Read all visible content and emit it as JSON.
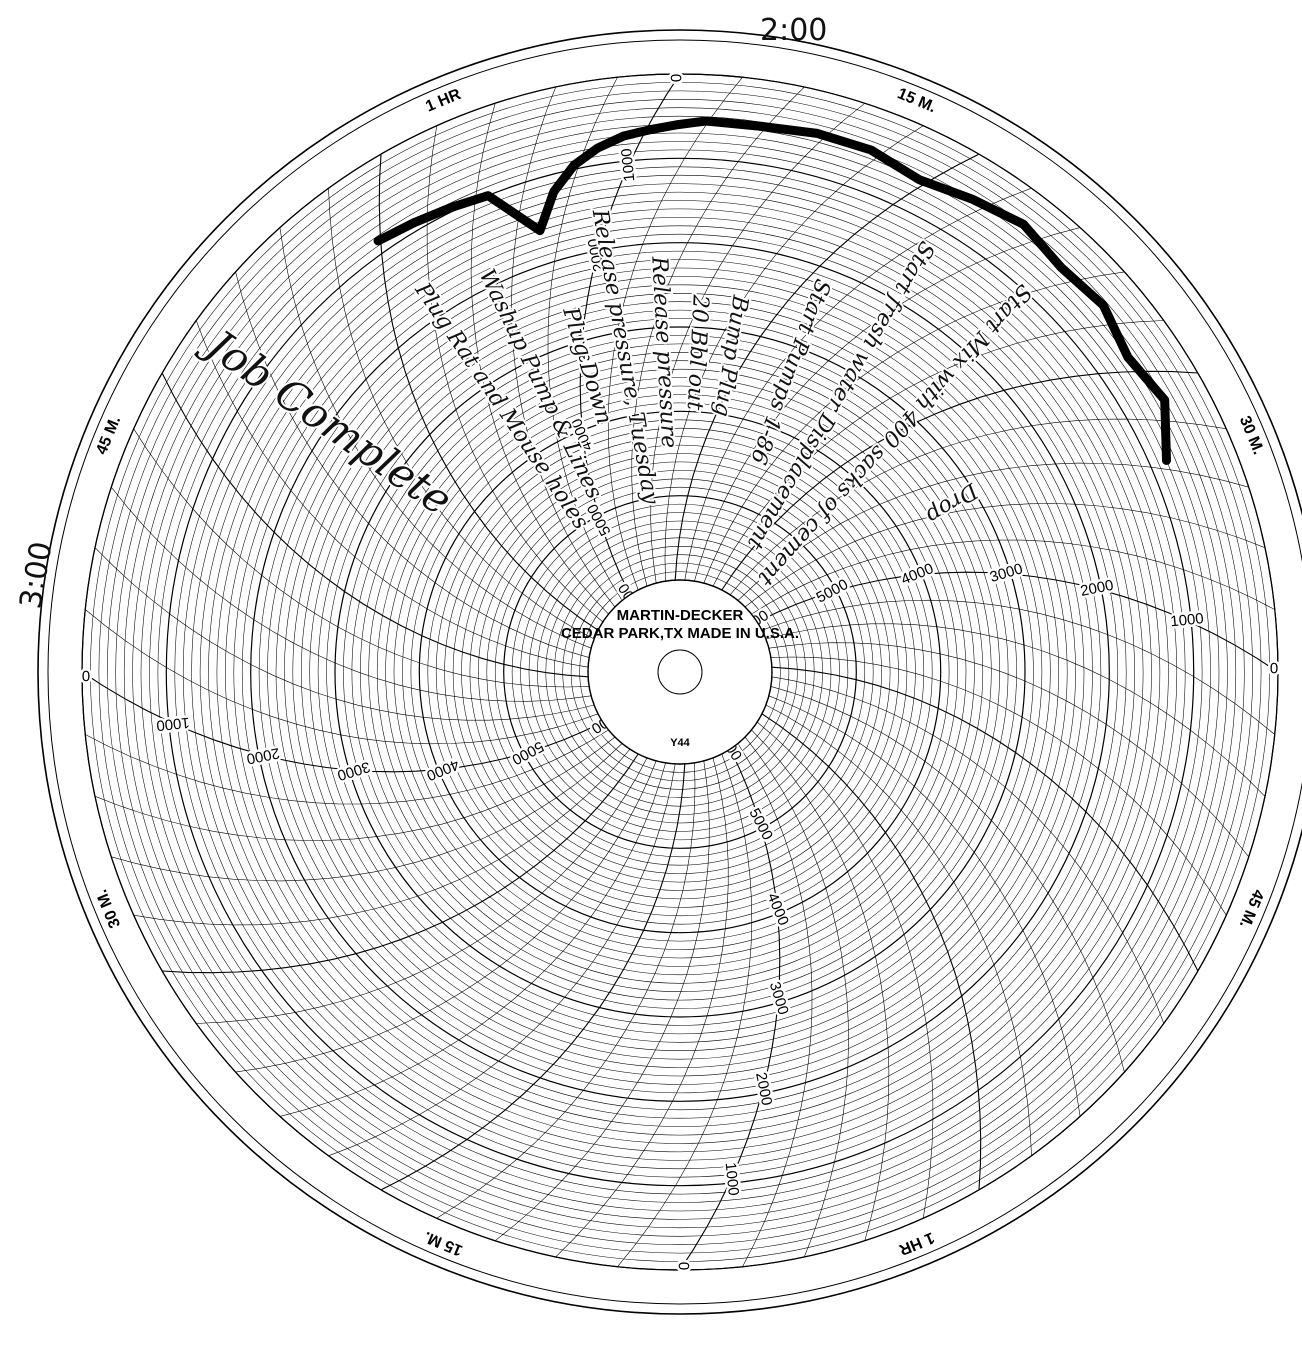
{
  "chart_data": {
    "type": "line",
    "title": "",
    "xlabel": "",
    "ylabel": "",
    "subtitle": "",
    "center_label": {
      "maker": "MARTIN-DECKER",
      "location": "CEDAR PARK,TX",
      "made_in": "MADE IN U.S.A.",
      "model": "Y44"
    },
    "radial_scale": {
      "min": 0,
      "max": 6000,
      "major_step": 1000,
      "tick_labels": [
        "0",
        "1000",
        "2000",
        "3000",
        "4000",
        "5000",
        "6000"
      ]
    },
    "time_scale": {
      "labels": [
        "15 M.",
        "30 M.",
        "45 M.",
        "1 HR",
        "15 M.",
        "30 M.",
        "45 M.",
        "1 HR"
      ]
    },
    "time_markers": [
      "2:00",
      "3:00"
    ],
    "annotations": [
      "Start Mix with 400 sacks of cement",
      "Start fresh water Displacement",
      "Start Pumps 1-86",
      "Bump Plug",
      "Release pressure",
      "Release pressure, Tuesday",
      "Plug Down",
      "Washup Pump & Lines",
      "Plug Rat and Mouse holes",
      "Job Complete",
      "Drop",
      "20 Bbl out"
    ],
    "series": [
      {
        "name": "",
        "x": [
          0,
          3,
          6,
          9,
          12,
          14,
          16,
          18,
          20,
          22,
          24,
          26,
          30,
          34,
          38,
          42,
          46,
          50,
          54,
          58,
          62,
          66,
          70
        ],
        "y": [
          850,
          900,
          950,
          1000,
          1600,
          1200,
          950,
          800,
          700,
          650,
          600,
          550,
          550,
          500,
          500,
          600,
          500,
          400,
          500,
          450,
          600,
          500,
          800
        ]
      }
    ],
    "colors": {
      "paper": "#ffffff",
      "grid": "#000000",
      "trace": "#000000"
    },
    "grid": true
  }
}
